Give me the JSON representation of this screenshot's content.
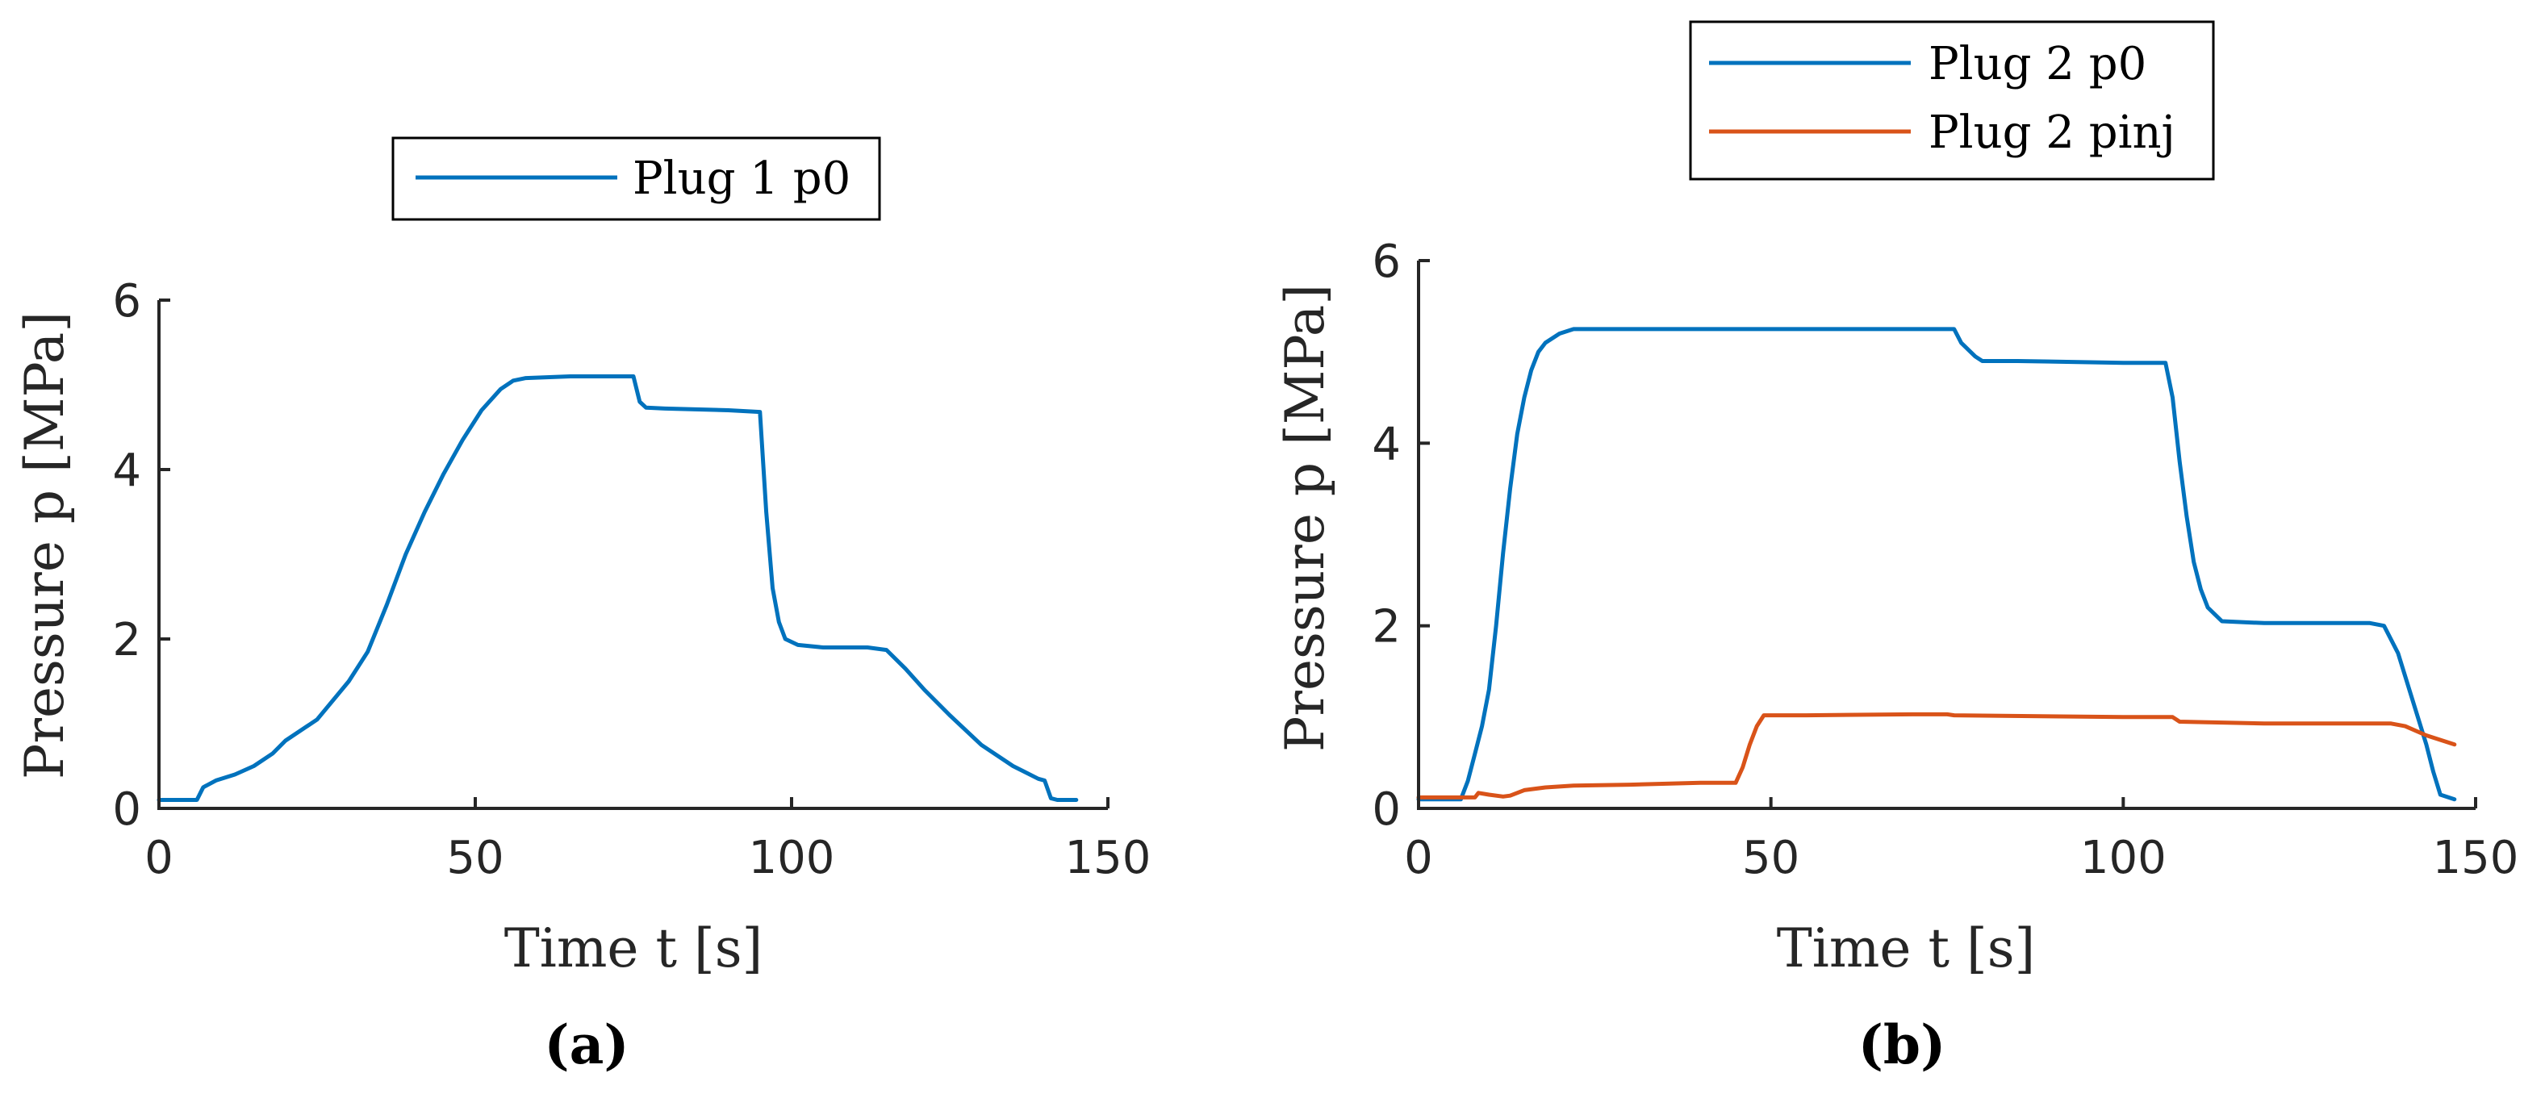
{
  "chart_data": [
    {
      "type": "line",
      "caption": "(a)",
      "xlabel": "Time t [s]",
      "ylabel": "Pressure p [MPa]",
      "xlim": [
        0,
        150
      ],
      "ylim": [
        0,
        6
      ],
      "xticks": [
        0,
        50,
        100,
        150
      ],
      "yticks": [
        0,
        2,
        4,
        6
      ],
      "legend": {
        "placement": "top",
        "entries": [
          "Plug 1 p0"
        ]
      },
      "series": [
        {
          "name": "Plug 1 p0",
          "color": "#0072BD",
          "points": [
            [
              0,
              0.1
            ],
            [
              6,
              0.1
            ],
            [
              7,
              0.25
            ],
            [
              9,
              0.33
            ],
            [
              12,
              0.4
            ],
            [
              15,
              0.5
            ],
            [
              18,
              0.65
            ],
            [
              20,
              0.8
            ],
            [
              25,
              1.05
            ],
            [
              30,
              1.5
            ],
            [
              33,
              1.85
            ],
            [
              36,
              2.4
            ],
            [
              39,
              3.0
            ],
            [
              42,
              3.5
            ],
            [
              45,
              3.95
            ],
            [
              48,
              4.35
            ],
            [
              51,
              4.7
            ],
            [
              54,
              4.95
            ],
            [
              56,
              5.05
            ],
            [
              58,
              5.08
            ],
            [
              65,
              5.1
            ],
            [
              75,
              5.1
            ],
            [
              76,
              4.8
            ],
            [
              77,
              4.73
            ],
            [
              80,
              4.72
            ],
            [
              90,
              4.7
            ],
            [
              95,
              4.68
            ],
            [
              96,
              3.5
            ],
            [
              97,
              2.6
            ],
            [
              98,
              2.2
            ],
            [
              99,
              2.0
            ],
            [
              101,
              1.93
            ],
            [
              105,
              1.9
            ],
            [
              112,
              1.9
            ],
            [
              115,
              1.87
            ],
            [
              118,
              1.65
            ],
            [
              121,
              1.4
            ],
            [
              125,
              1.1
            ],
            [
              130,
              0.75
            ],
            [
              135,
              0.5
            ],
            [
              139,
              0.35
            ],
            [
              140,
              0.33
            ],
            [
              141,
              0.12
            ],
            [
              142,
              0.1
            ],
            [
              145,
              0.1
            ]
          ]
        }
      ]
    },
    {
      "type": "line",
      "caption": "(b)",
      "xlabel": "Time t [s]",
      "ylabel": "Pressure p [MPa]",
      "xlim": [
        0,
        150
      ],
      "ylim": [
        0,
        6
      ],
      "xticks": [
        0,
        50,
        100,
        150
      ],
      "yticks": [
        0,
        2,
        4,
        6
      ],
      "legend": {
        "placement": "top",
        "entries": [
          "Plug 2 p0",
          "Plug 2 pinj"
        ]
      },
      "series": [
        {
          "name": "Plug 2 p0",
          "color": "#0072BD",
          "points": [
            [
              0,
              0.1
            ],
            [
              6,
              0.1
            ],
            [
              7,
              0.3
            ],
            [
              8,
              0.6
            ],
            [
              9,
              0.9
            ],
            [
              10,
              1.3
            ],
            [
              11,
              2.0
            ],
            [
              12,
              2.8
            ],
            [
              13,
              3.5
            ],
            [
              14,
              4.1
            ],
            [
              15,
              4.5
            ],
            [
              16,
              4.8
            ],
            [
              17,
              5.0
            ],
            [
              18,
              5.1
            ],
            [
              20,
              5.2
            ],
            [
              22,
              5.25
            ],
            [
              40,
              5.25
            ],
            [
              60,
              5.25
            ],
            [
              76,
              5.25
            ],
            [
              77,
              5.1
            ],
            [
              79,
              4.95
            ],
            [
              80,
              4.9
            ],
            [
              85,
              4.9
            ],
            [
              100,
              4.88
            ],
            [
              106,
              4.88
            ],
            [
              107,
              4.5
            ],
            [
              108,
              3.8
            ],
            [
              109,
              3.2
            ],
            [
              110,
              2.7
            ],
            [
              111,
              2.4
            ],
            [
              112,
              2.2
            ],
            [
              114,
              2.05
            ],
            [
              120,
              2.03
            ],
            [
              135,
              2.03
            ],
            [
              137,
              2.0
            ],
            [
              139,
              1.7
            ],
            [
              141,
              1.2
            ],
            [
              143,
              0.7
            ],
            [
              144,
              0.4
            ],
            [
              145,
              0.15
            ],
            [
              147,
              0.1
            ]
          ]
        },
        {
          "name": "Plug 2 pinj",
          "color": "#D95319",
          "points": [
            [
              0,
              0.12
            ],
            [
              8,
              0.12
            ],
            [
              8.5,
              0.17
            ],
            [
              10,
              0.15
            ],
            [
              12,
              0.13
            ],
            [
              13,
              0.14
            ],
            [
              15,
              0.2
            ],
            [
              18,
              0.23
            ],
            [
              22,
              0.25
            ],
            [
              30,
              0.26
            ],
            [
              40,
              0.28
            ],
            [
              45,
              0.28
            ],
            [
              46,
              0.45
            ],
            [
              47,
              0.7
            ],
            [
              48,
              0.9
            ],
            [
              49,
              1.02
            ],
            [
              55,
              1.02
            ],
            [
              70,
              1.03
            ],
            [
              75,
              1.03
            ],
            [
              76,
              1.02
            ],
            [
              100,
              1.0
            ],
            [
              107,
              1.0
            ],
            [
              108,
              0.95
            ],
            [
              120,
              0.93
            ],
            [
              135,
              0.93
            ],
            [
              138,
              0.93
            ],
            [
              140,
              0.9
            ],
            [
              143,
              0.8
            ],
            [
              147,
              0.7
            ]
          ]
        }
      ]
    }
  ]
}
